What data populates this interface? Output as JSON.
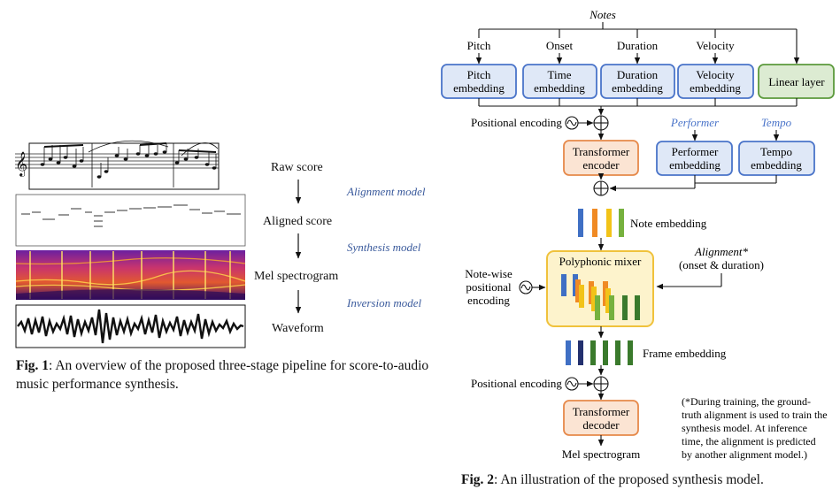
{
  "fig1": {
    "stage_labels": [
      "Raw score",
      "Aligned score",
      "Mel spectrogram",
      "Waveform"
    ],
    "model_labels": [
      "Alignment model",
      "Synthesis model",
      "Inversion model"
    ],
    "caption_label": "Fig. 1",
    "caption_text": ":  An overview of the proposed three-stage pipeline for score-to-audio music performance synthesis."
  },
  "fig2": {
    "notes_label": "Notes",
    "attributes": [
      "Pitch",
      "Onset",
      "Duration",
      "Velocity"
    ],
    "embeddings": [
      {
        "line1": "Pitch",
        "line2": "embedding"
      },
      {
        "line1": "Time",
        "line2": "embedding"
      },
      {
        "line1": "Duration",
        "line2": "embedding"
      },
      {
        "line1": "Velocity",
        "line2": "embedding"
      }
    ],
    "linear_layer": "Linear layer",
    "positional_encoding": "Positional encoding",
    "performer_label": "Performer",
    "tempo_label": "Tempo",
    "performer_embedding": {
      "line1": "Performer",
      "line2": "embedding"
    },
    "tempo_embedding": {
      "line1": "Tempo",
      "line2": "embedding"
    },
    "transformer_encoder": {
      "line1": "Transformer",
      "line2": "encoder"
    },
    "note_embedding": "Note embedding",
    "polyphonic_mixer": "Polyphonic mixer",
    "alignment_label": "Alignment*",
    "alignment_sub": "(onset & duration)",
    "notewise_pe": [
      "Note-wise",
      "positional",
      "encoding"
    ],
    "frame_embedding": "Frame embedding",
    "transformer_decoder": {
      "line1": "Transformer",
      "line2": "decoder"
    },
    "mel_output": "Mel spectrogram",
    "footnote": [
      "(*During training, the ground-",
      "truth alignment is used to train the",
      "synthesis model. At inference",
      "time, the alignment is predicted",
      "by another alignment model.)"
    ],
    "caption_label": "Fig. 2",
    "caption_text": ":  An illustration of the proposed synthesis model."
  },
  "colors": {
    "embed_fill": "#dfe8f7",
    "embed_stroke": "#4a74c9",
    "linear_fill": "#dcebd2",
    "linear_stroke": "#5c9a3c",
    "transformer_fill": "#fbe4d3",
    "transformer_stroke": "#e6894a",
    "mixer_fill": "#fdf3cc",
    "mixer_stroke": "#f0c23c",
    "model_label": "#3a5a9c",
    "blue_bar": "#3f6fc4",
    "orange_bar": "#f08a24",
    "yellow_bar": "#f2c318",
    "green_bar": "#76b13e",
    "dark_green_bar": "#3a7a2c",
    "navy_bar": "#23306e"
  }
}
